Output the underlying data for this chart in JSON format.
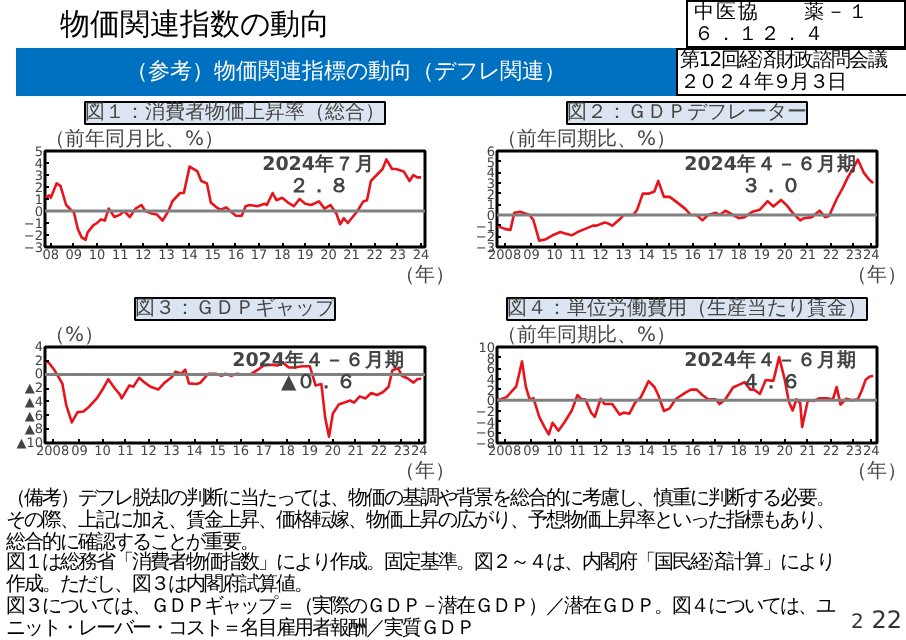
{
  "chart_data": [
    {
      "type": "other",
      "title": "物価関連指数の動向",
      "subtitle": "（参考）物価関連指標の動向（デフレ関連）",
      "annotations": [
        "中医協　　薬－１",
        "６．１２．４",
        "第12回経済財政諮問会議",
        "２０２４年９月３日"
      ]
    },
    {
      "type": "line",
      "title": "図１：消費者物価上昇率（総合）",
      "ylabel": "（前年同月比、%）",
      "xlabel": "（年）",
      "xlim": [
        "2008-04",
        "2024-09"
      ],
      "ylim": [
        -3,
        5
      ],
      "yticks": [
        -3,
        -2,
        -1,
        0,
        1,
        2,
        3,
        4,
        5
      ],
      "xticks": [
        {
          "value": "2008-07",
          "label": "08"
        },
        {
          "value": "2009-07",
          "label": "09"
        },
        {
          "value": "2010-07",
          "label": "10"
        },
        {
          "value": "2011-07",
          "label": "11"
        },
        {
          "value": "2012-07",
          "label": "12"
        },
        {
          "value": "2013-07",
          "label": "13"
        },
        {
          "value": "2014-07",
          "label": "14"
        },
        {
          "value": "2015-07",
          "label": "15"
        },
        {
          "value": "2016-07",
          "label": "16"
        },
        {
          "value": "2017-07",
          "label": "17"
        },
        {
          "value": "2018-07",
          "label": "18"
        },
        {
          "value": "2019-07",
          "label": "19"
        },
        {
          "value": "2020-07",
          "label": "20"
        },
        {
          "value": "2021-07",
          "label": "21"
        },
        {
          "value": "2022-07",
          "label": "22"
        },
        {
          "value": "2023-07",
          "label": "23"
        },
        {
          "value": "2024-07",
          "label": "24"
        }
      ],
      "ref_lines": [
        {
          "axis": "y",
          "value": 0,
          "color": "#808080"
        }
      ],
      "annotations": [
        "2024年７月",
        "２．８"
      ],
      "series": [
        {
          "color": "#e8141c",
          "x": [
            "2008-04",
            "2008-06",
            "2008-07",
            "2008-10",
            "2008-12",
            "2009-03",
            "2009-06",
            "2009-07",
            "2009-09",
            "2009-11",
            "2010-01",
            "2010-02",
            "2010-05",
            "2010-07",
            "2010-09",
            "2010-11",
            "2011-01",
            "2011-04",
            "2011-07",
            "2011-09",
            "2011-12",
            "2012-03",
            "2012-06",
            "2012-08",
            "2012-11",
            "2013-02",
            "2013-05",
            "2013-08",
            "2013-10",
            "2014-02",
            "2014-04",
            "2014-07",
            "2014-11",
            "2015-01",
            "2015-04",
            "2015-06",
            "2015-09",
            "2015-11",
            "2016-02",
            "2016-04",
            "2016-07",
            "2016-10",
            "2016-12",
            "2017-02",
            "2017-06",
            "2017-10",
            "2017-11",
            "2018-02",
            "2018-04",
            "2018-07",
            "2018-10",
            "2019-01",
            "2019-04",
            "2019-07",
            "2019-10",
            "2020-02",
            "2020-05",
            "2020-08",
            "2020-11",
            "2021-01",
            "2021-03",
            "2021-05",
            "2021-07",
            "2021-10",
            "2022-01",
            "2022-03",
            "2022-05",
            "2022-08",
            "2022-11",
            "2023-01",
            "2023-04",
            "2023-06",
            "2023-10",
            "2024-01",
            "2024-03",
            "2024-05",
            "2024-07"
          ],
          "values": [
            1.0,
            1.3,
            1.1,
            2.3,
            2.1,
            0.5,
            0.0,
            -0.1,
            -1.5,
            -2.2,
            -2.4,
            -1.8,
            -1.2,
            -1.0,
            -0.7,
            -0.8,
            0.2,
            -0.5,
            -0.3,
            0.0,
            -0.5,
            0.2,
            0.5,
            0.0,
            -0.2,
            -0.3,
            -0.8,
            0.0,
            0.8,
            1.5,
            1.5,
            3.7,
            3.3,
            2.5,
            2.3,
            0.7,
            0.3,
            0.1,
            0.3,
            0.0,
            -0.4,
            -0.4,
            0.4,
            0.5,
            0.4,
            0.6,
            0.5,
            1.5,
            0.9,
            1.1,
            0.7,
            0.4,
            1.0,
            0.6,
            0.5,
            0.8,
            0.2,
            0.5,
            -0.2,
            -1.1,
            -0.6,
            -1.0,
            -0.6,
            0.0,
            0.8,
            0.9,
            2.5,
            3.0,
            3.5,
            4.3,
            3.5,
            3.5,
            3.3,
            2.5,
            3.0,
            2.8,
            2.8
          ]
        }
      ]
    },
    {
      "type": "line",
      "title": "図２：ＧＤＰデフレーター",
      "ylabel": "（前年同期比、%）",
      "xlabel": "（年）",
      "xlim": [
        "2008-01",
        "2024-07"
      ],
      "ylim": [
        -3,
        6
      ],
      "yticks": [
        -3,
        -2,
        -1,
        0,
        1,
        2,
        3,
        4,
        5,
        6
      ],
      "xticks": [
        {
          "value": "2008-05",
          "label": "2008"
        },
        {
          "value": "2009-07",
          "label": "09"
        },
        {
          "value": "2010-07",
          "label": "10"
        },
        {
          "value": "2011-07",
          "label": "11"
        },
        {
          "value": "2012-07",
          "label": "12"
        },
        {
          "value": "2013-07",
          "label": "13"
        },
        {
          "value": "2014-07",
          "label": "14"
        },
        {
          "value": "2015-07",
          "label": "15"
        },
        {
          "value": "2016-07",
          "label": "16"
        },
        {
          "value": "2017-07",
          "label": "17"
        },
        {
          "value": "2018-07",
          "label": "18"
        },
        {
          "value": "2019-07",
          "label": "19"
        },
        {
          "value": "2020-07",
          "label": "20"
        },
        {
          "value": "2021-07",
          "label": "21"
        },
        {
          "value": "2022-07",
          "label": "22"
        },
        {
          "value": "2023-07",
          "label": "23"
        },
        {
          "value": "2024-04",
          "label": "24"
        }
      ],
      "ref_lines": [
        {
          "axis": "y",
          "value": 0,
          "color": "#808080"
        }
      ],
      "annotations": [
        "2024年４－６月期",
        "３．０"
      ],
      "series": [
        {
          "color": "#e8141c",
          "x": [
            "2008-01",
            "2008-05",
            "2008-08",
            "2008-10",
            "2009-01",
            "2009-06",
            "2009-08",
            "2009-11",
            "2010-02",
            "2010-06",
            "2010-10",
            "2010-12",
            "2011-04",
            "2011-07",
            "2011-11",
            "2012-03",
            "2012-05",
            "2012-09",
            "2012-11",
            "2013-01",
            "2013-05",
            "2013-07",
            "2013-12",
            "2014-02",
            "2014-05",
            "2014-08",
            "2014-11",
            "2015-01",
            "2015-04",
            "2015-07",
            "2015-10",
            "2016-03",
            "2016-06",
            "2016-09",
            "2016-12",
            "2017-03",
            "2017-07",
            "2017-09",
            "2017-12",
            "2018-04",
            "2018-07",
            "2018-10",
            "2019-02",
            "2019-06",
            "2019-10",
            "2020-01",
            "2020-05",
            "2020-08",
            "2020-11",
            "2021-03",
            "2021-05",
            "2021-09",
            "2022-01",
            "2022-04",
            "2022-06",
            "2022-10",
            "2023-01",
            "2023-04",
            "2023-07",
            "2023-09",
            "2023-12",
            "2024-03",
            "2024-05"
          ],
          "values": [
            -1.0,
            -1.3,
            -1.4,
            0.2,
            0.3,
            0.0,
            -0.5,
            -2.4,
            -2.3,
            -1.9,
            -1.6,
            -1.7,
            -1.9,
            -1.6,
            -1.3,
            -1.0,
            -1.0,
            -0.7,
            -0.8,
            -1.0,
            -0.4,
            0.0,
            0.0,
            0.5,
            2.0,
            2.0,
            2.2,
            3.2,
            1.7,
            1.7,
            1.3,
            0.6,
            0.0,
            0.0,
            -0.5,
            0.0,
            0.2,
            0.0,
            0.4,
            0.0,
            -0.3,
            -0.2,
            0.3,
            0.5,
            1.3,
            0.8,
            1.4,
            0.9,
            0.2,
            -0.5,
            -0.3,
            -0.2,
            0.4,
            -0.2,
            -0.1,
            1.5,
            2.5,
            3.6,
            4.5,
            5.2,
            4.0,
            3.3,
            3.0
          ]
        }
      ]
    },
    {
      "type": "line",
      "title": "図３：ＧＤＰギャップ",
      "ylabel": "（%）",
      "xlabel": "（年）",
      "xlim": [
        "2008-01",
        "2024-07"
      ],
      "ylim": [
        -10,
        4
      ],
      "yticks": [
        4,
        2,
        0,
        {
          "value": -2,
          "label": "▲2"
        },
        {
          "value": -4,
          "label": "▲4"
        },
        {
          "value": -6,
          "label": "▲6"
        },
        {
          "value": -8,
          "label": "▲8"
        },
        {
          "value": -10,
          "label": "▲10"
        }
      ],
      "xticks": [
        {
          "value": "2008-05",
          "label": "2008"
        },
        {
          "value": "2009-07",
          "label": "09"
        },
        {
          "value": "2010-07",
          "label": "10"
        },
        {
          "value": "2011-07",
          "label": "11"
        },
        {
          "value": "2012-07",
          "label": "12"
        },
        {
          "value": "2013-07",
          "label": "13"
        },
        {
          "value": "2014-07",
          "label": "14"
        },
        {
          "value": "2015-07",
          "label": "15"
        },
        {
          "value": "2016-07",
          "label": "16"
        },
        {
          "value": "2017-07",
          "label": "17"
        },
        {
          "value": "2018-07",
          "label": "18"
        },
        {
          "value": "2019-07",
          "label": "19"
        },
        {
          "value": "2020-07",
          "label": "20"
        },
        {
          "value": "2021-07",
          "label": "21"
        },
        {
          "value": "2022-07",
          "label": "22"
        },
        {
          "value": "2023-07",
          "label": "23"
        },
        {
          "value": "2024-04",
          "label": "24"
        }
      ],
      "ref_lines": [
        {
          "axis": "y",
          "value": 0,
          "color": "#808080"
        }
      ],
      "annotations": [
        "2024年４－６月期",
        "▲０．６"
      ],
      "series": [
        {
          "color": "#e8141c",
          "x": [
            "2008-01",
            "2008-03",
            "2008-06",
            "2008-10",
            "2008-12",
            "2009-03",
            "2009-06",
            "2009-09",
            "2009-12",
            "2010-04",
            "2010-07",
            "2010-10",
            "2011-01",
            "2011-04",
            "2011-05",
            "2011-09",
            "2011-11",
            "2012-02",
            "2012-05",
            "2012-08",
            "2012-12",
            "2013-03",
            "2013-07",
            "2013-09",
            "2013-12",
            "2014-02",
            "2014-04",
            "2014-08",
            "2014-10",
            "2015-02",
            "2015-06",
            "2015-09",
            "2015-11",
            "2016-02",
            "2016-05",
            "2016-08",
            "2016-12",
            "2017-04",
            "2017-07",
            "2017-11",
            "2018-02",
            "2018-05",
            "2018-08",
            "2018-11",
            "2019-03",
            "2019-07",
            "2019-10",
            "2020-01",
            "2020-03",
            "2020-05",
            "2020-07",
            "2020-10",
            "2021-01",
            "2021-04",
            "2021-06",
            "2021-09",
            "2021-12",
            "2022-03",
            "2022-06",
            "2022-09",
            "2022-12",
            "2023-02",
            "2023-05",
            "2023-07",
            "2023-10",
            "2024-01",
            "2024-03",
            "2024-05"
          ],
          "values": [
            2.0,
            1.7,
            0.6,
            -1.3,
            -4.4,
            -7.0,
            -5.5,
            -5.4,
            -4.7,
            -3.5,
            -2.2,
            -0.7,
            -1.9,
            -2.9,
            -3.5,
            -1.6,
            -1.8,
            -0.5,
            -1.2,
            -1.8,
            -2.2,
            -1.3,
            -0.4,
            0.4,
            0.1,
            0.7,
            -1.3,
            -1.4,
            -1.2,
            0.1,
            0.1,
            -0.2,
            0.1,
            -0.2,
            0.1,
            0.0,
            0.0,
            0.7,
            1.3,
            1.4,
            1.3,
            1.7,
            1.0,
            1.0,
            1.2,
            1.2,
            -1.6,
            -1.4,
            -6.3,
            -9.1,
            -5.7,
            -4.4,
            -4.1,
            -3.8,
            -4.1,
            -3.2,
            -3.5,
            -2.7,
            -3.0,
            -2.6,
            -1.8,
            0.6,
            0.9,
            -0.2,
            -0.6,
            -1.2,
            -0.7,
            -0.6
          ]
        }
      ]
    },
    {
      "type": "line",
      "title": "図４：単位労働費用（生産当たり賃金）",
      "ylabel": "（前年同期比、%）",
      "xlabel": "（年）",
      "xlim": [
        "2008-01",
        "2024-07"
      ],
      "ylim": [
        -8,
        10
      ],
      "yticks": [
        -8,
        -6,
        -4,
        -2,
        0,
        2,
        4,
        6,
        8,
        10
      ],
      "xticks": [
        {
          "value": "2008-05",
          "label": "2008"
        },
        {
          "value": "2009-07",
          "label": "09"
        },
        {
          "value": "2010-07",
          "label": "10"
        },
        {
          "value": "2011-07",
          "label": "11"
        },
        {
          "value": "2012-07",
          "label": "12"
        },
        {
          "value": "2013-07",
          "label": "13"
        },
        {
          "value": "2014-07",
          "label": "14"
        },
        {
          "value": "2015-07",
          "label": "15"
        },
        {
          "value": "2016-07",
          "label": "16"
        },
        {
          "value": "2017-07",
          "label": "17"
        },
        {
          "value": "2018-07",
          "label": "18"
        },
        {
          "value": "2019-07",
          "label": "19"
        },
        {
          "value": "2020-07",
          "label": "20"
        },
        {
          "value": "2021-07",
          "label": "21"
        },
        {
          "value": "2022-07",
          "label": "22"
        },
        {
          "value": "2023-07",
          "label": "23"
        },
        {
          "value": "2024-04",
          "label": "24"
        }
      ],
      "ref_lines": [
        {
          "axis": "y",
          "value": 0,
          "color": "#808080"
        }
      ],
      "annotations": [
        "2024年４－６月期",
        "４．６"
      ],
      "series": [
        {
          "color": "#e8141c",
          "x": [
            "2008-01",
            "2008-03",
            "2008-06",
            "2008-09",
            "2008-11",
            "2009-02",
            "2009-04",
            "2009-06",
            "2009-08",
            "2009-11",
            "2010-02",
            "2010-04",
            "2010-06",
            "2010-09",
            "2010-12",
            "2011-04",
            "2011-07",
            "2011-09",
            "2011-11",
            "2012-02",
            "2012-04",
            "2012-07",
            "2012-09",
            "2013-01",
            "2013-05",
            "2013-07",
            "2013-10",
            "2014-01",
            "2014-04",
            "2014-08",
            "2014-11",
            "2015-01",
            "2015-04",
            "2015-07",
            "2015-10",
            "2016-03",
            "2016-06",
            "2016-09",
            "2016-12",
            "2017-03",
            "2017-07",
            "2017-09",
            "2017-12",
            "2018-04",
            "2018-07",
            "2018-10",
            "2019-01",
            "2019-03",
            "2019-06",
            "2019-09",
            "2019-12",
            "2020-01",
            "2020-04",
            "2020-07",
            "2020-09",
            "2020-11",
            "2021-01",
            "2021-03",
            "2021-04",
            "2021-07",
            "2021-10",
            "2022-01",
            "2022-05",
            "2022-08",
            "2022-10",
            "2022-12",
            "2023-03",
            "2023-06",
            "2023-09",
            "2023-11",
            "2024-01",
            "2024-03",
            "2024-05"
          ],
          "values": [
            0.0,
            0.2,
            0.6,
            1.8,
            2.6,
            7.3,
            2.6,
            0.2,
            0.4,
            -3.1,
            -5.2,
            -6.4,
            -4.2,
            -5.7,
            -4.2,
            -1.9,
            1.0,
            0.2,
            0.2,
            -2.3,
            -3.1,
            0.3,
            -0.7,
            -0.7,
            -2.7,
            -2.3,
            -2.5,
            -0.4,
            0.6,
            3.6,
            2.5,
            1.0,
            -2.0,
            -1.5,
            0.2,
            1.4,
            2.0,
            2.0,
            1.0,
            0.2,
            0.2,
            -0.7,
            0.2,
            2.4,
            2.9,
            3.4,
            2.0,
            2.0,
            1.2,
            3.8,
            3.7,
            3.7,
            8.1,
            3.8,
            -0.2,
            -1.9,
            0.2,
            -0.5,
            -5.0,
            0.0,
            -0.1,
            0.4,
            0.4,
            0.2,
            2.5,
            -0.8,
            0.3,
            0.0,
            0.2,
            1.8,
            3.8,
            4.4,
            4.6
          ]
        }
      ]
    },
    {
      "type": "other",
      "annotations": [
        "（備考）デフレ脱却の判断に当たっては、物価の基調や背景を総合的に考慮し、慎重に判断する必要。その際、上記に加え、賃金上昇、価格転嫁、物価上昇の広がり、予想物価上昇率といった指標もあり、総合的に確認することが重要。",
        "図１は総務省「消費者物価指数」により作成。固定基準。図２～４は、内閣府「国民経済計算」により作成。ただし、図３は内閣府試算値。",
        "図３については、ＧＤＰギャップ＝（実際のＧＤＰ－潜在ＧＤＰ）／潜在ＧＤＰ。図４については、ユニット・レーバー・コスト＝名目雇用者報酬／実質ＧＤＰ",
        "2",
        "22"
      ]
    }
  ]
}
